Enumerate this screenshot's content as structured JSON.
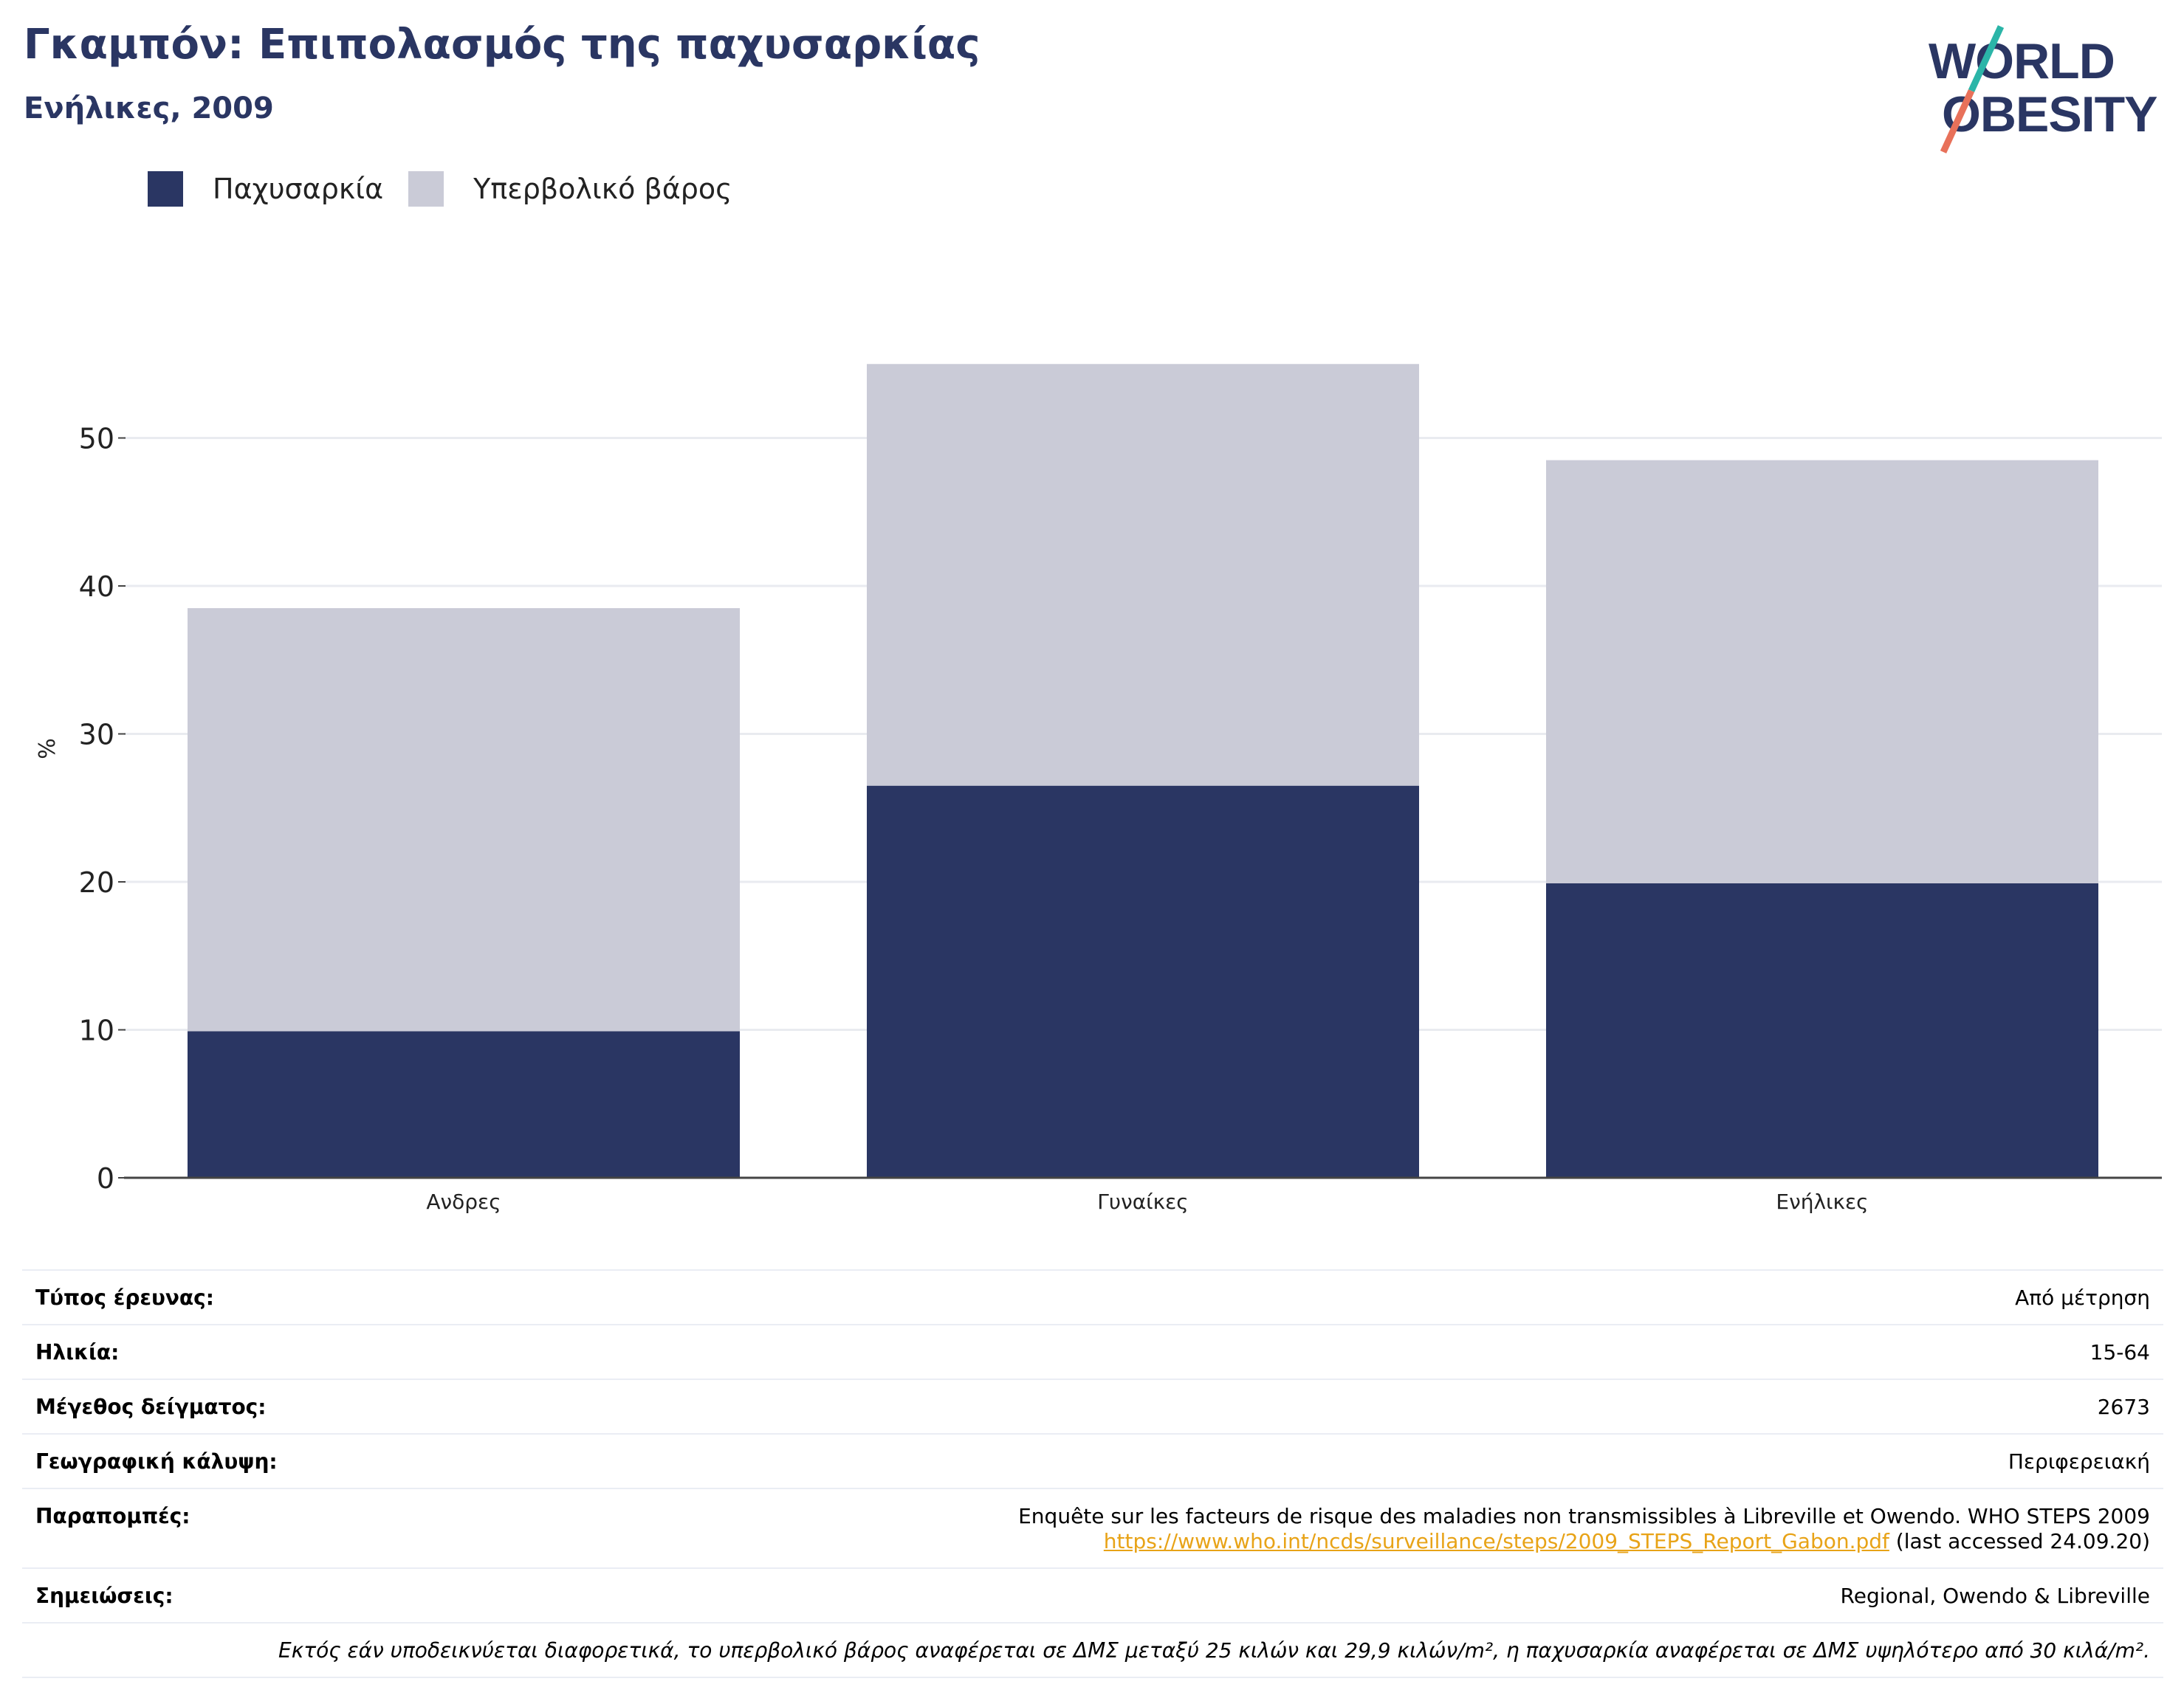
{
  "header": {
    "title": "Γκαμπόν: Επιπολασμός της παχυσαρκίας",
    "subtitle": "Ενήλικες, 2009"
  },
  "logo": {
    "line1": "WORLD",
    "line2": "OBESITY"
  },
  "colors": {
    "obesity": "#2a3663",
    "overweight": "#cacbd7",
    "title": "#2a3663",
    "grid": "#e9ebf0",
    "link": "#e8a317"
  },
  "chart_data": {
    "type": "bar",
    "stacked": true,
    "categories": [
      "Ανδρες",
      "Γυναίκες",
      "Ενήλικες"
    ],
    "series": [
      {
        "name": "Παχυσαρκία",
        "values": [
          9.9,
          26.5,
          19.9
        ]
      },
      {
        "name": "Υπερβολικό βάρος",
        "values": [
          28.6,
          28.5,
          28.6
        ]
      }
    ],
    "totals": [
      38.5,
      55.0,
      48.5
    ],
    "xlabel": "",
    "ylabel": "%",
    "ylim": [
      0,
      58
    ],
    "yticks": [
      0,
      10,
      20,
      30,
      40,
      50
    ],
    "grid": true,
    "legend_position": "top-left"
  },
  "info": {
    "rows": [
      {
        "key": "Τύπος έρευνας:",
        "value": "Από μέτρηση"
      },
      {
        "key": "Ηλικία:",
        "value": "15-64"
      },
      {
        "key": "Μέγεθος δείγματος:",
        "value": "2673"
      },
      {
        "key": "Γεωγραφική κάλυψη:",
        "value": "Περιφερειακή"
      }
    ],
    "reference_key": "Παραπομπές:",
    "reference_text": "Enquête sur les facteurs de risque des maladies non transmissibles à Libreville et Owendo. WHO STEPS 2009",
    "reference_link": "https://www.who.int/ncds/surveillance/steps/2009_STEPS_Report_Gabon.pdf",
    "reference_suffix": " (last accessed 24.09.20)",
    "notes_key": "Σημειώσεις:",
    "notes_value": "Regional, Owendo & Libreville",
    "footnote": "Εκτός εάν υποδεικνύεται διαφορετικά, το υπερβολικό βάρος αναφέρεται σε ΔΜΣ μεταξύ 25 κιλών και 29,9 κιλών/m², η παχυσαρκία αναφέρεται σε ΔΜΣ υψηλότερο από 30 κιλά/m²."
  }
}
